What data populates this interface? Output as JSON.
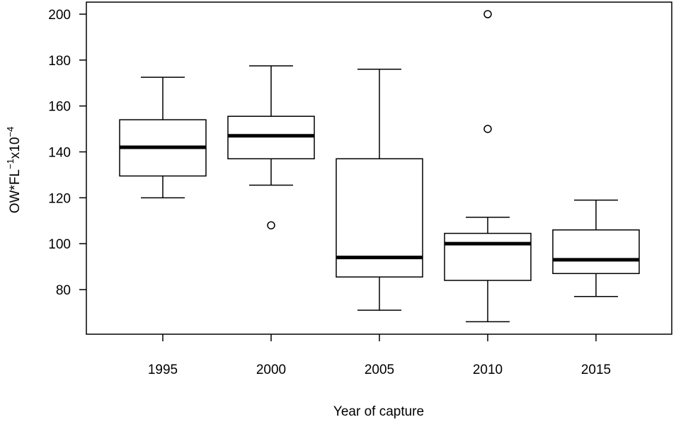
{
  "chart_data": {
    "type": "boxplot",
    "categories": [
      "1995",
      "2000",
      "2005",
      "2010",
      "2015"
    ],
    "xlabel": "Year of capture",
    "ylabel": {
      "base": "OW*FL",
      "sup1": "−1",
      "mid": "x10",
      "sup2": "−4"
    },
    "yticks": [
      80,
      100,
      120,
      140,
      160,
      180,
      200
    ],
    "ylim": [
      61,
      204
    ],
    "boxes": [
      {
        "category": "1995",
        "whisker_low": 120,
        "q1": 129.5,
        "median": 142,
        "q3": 154,
        "whisker_high": 172.5,
        "outliers": []
      },
      {
        "category": "2000",
        "whisker_low": 125.5,
        "q1": 137,
        "median": 147,
        "q3": 155.5,
        "whisker_high": 177.5,
        "outliers": [
          108
        ]
      },
      {
        "category": "2005",
        "whisker_low": 71,
        "q1": 85.5,
        "median": 94,
        "q3": 137,
        "whisker_high": 176,
        "outliers": []
      },
      {
        "category": "2010",
        "whisker_low": 66,
        "q1": 84,
        "median": 100,
        "q3": 104.5,
        "whisker_high": 111.5,
        "outliers": [
          150,
          200
        ]
      },
      {
        "category": "2015",
        "whisker_low": 77,
        "q1": 87,
        "median": 93,
        "q3": 106,
        "whisker_high": 119,
        "outliers": []
      }
    ]
  }
}
